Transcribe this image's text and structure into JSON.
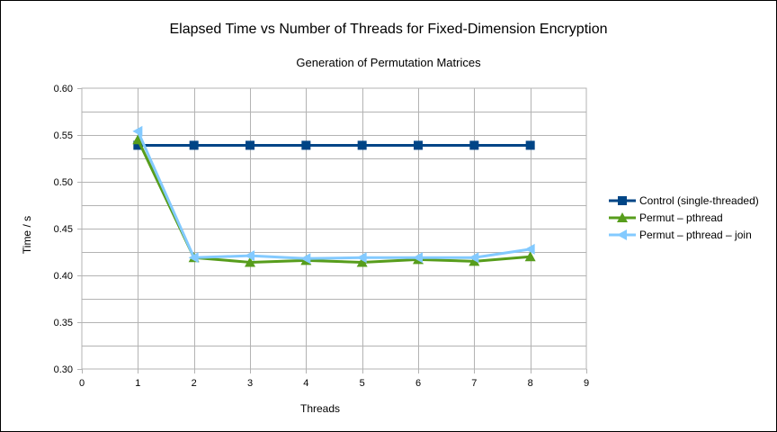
{
  "chart_data": {
    "type": "line",
    "title": "Elapsed Time vs Number of Threads for Fixed-Dimension Encryption",
    "subtitle": "Generation of Permutation Matrices",
    "xlabel": "Threads",
    "ylabel": "Time / s",
    "xlim": [
      0,
      9
    ],
    "ylim": [
      0.3,
      0.6
    ],
    "xticks": [
      "0",
      "1",
      "2",
      "3",
      "4",
      "5",
      "6",
      "7",
      "8",
      "9"
    ],
    "yticks": [
      "0.60",
      "0.55",
      "0.50",
      "0.45",
      "0.40",
      "0.35",
      "0.30"
    ],
    "x": [
      1,
      2,
      3,
      4,
      5,
      6,
      7,
      8
    ],
    "grid": true,
    "legend_position": "right",
    "series": [
      {
        "name": "Control (single-threaded)",
        "color": "#004586",
        "marker": "square",
        "values": [
          0.539,
          0.539,
          0.539,
          0.539,
          0.539,
          0.539,
          0.539,
          0.539
        ]
      },
      {
        "name": "Permut – pthread",
        "color": "#579d1c",
        "marker": "triangle",
        "values": [
          0.545,
          0.419,
          0.414,
          0.416,
          0.414,
          0.417,
          0.415,
          0.42
        ]
      },
      {
        "name": "Permut – pthread – join",
        "color": "#83caff",
        "marker": "left-arrow",
        "values": [
          0.554,
          0.419,
          0.421,
          0.418,
          0.419,
          0.419,
          0.419,
          0.428
        ]
      }
    ]
  }
}
